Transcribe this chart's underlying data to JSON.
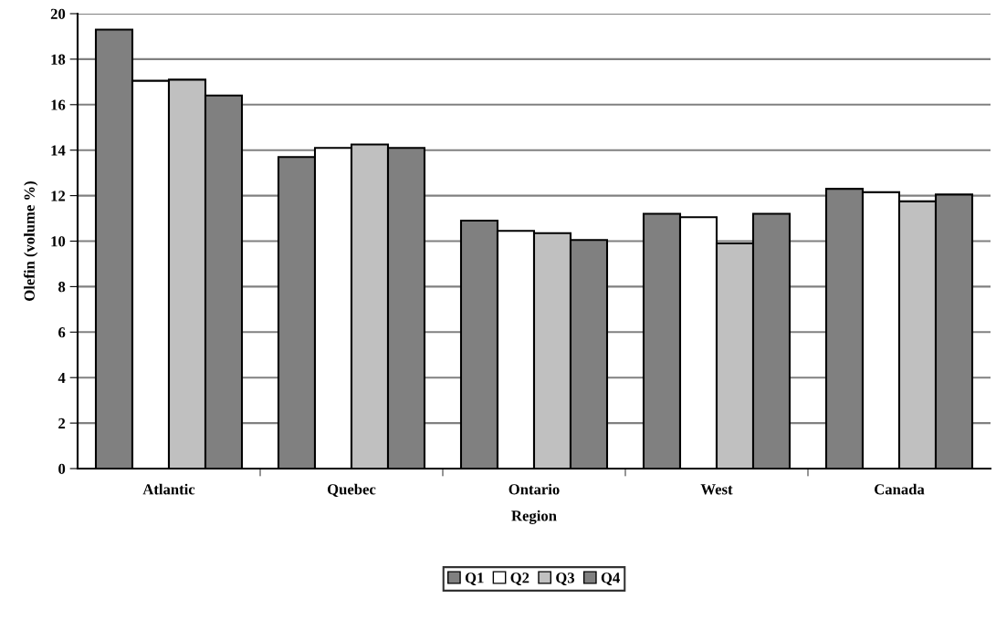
{
  "chart_data": {
    "type": "bar",
    "xlabel": "Region",
    "ylabel": "Olefin (volume %)",
    "categories": [
      "Atlantic",
      "Quebec",
      "Ontario",
      "West",
      "Canada"
    ],
    "series": [
      {
        "name": "Q1",
        "color": "#808080",
        "values": [
          19.3,
          13.7,
          10.9,
          11.2,
          12.3
        ]
      },
      {
        "name": "Q2",
        "color": "#ffffff",
        "values": [
          17.05,
          14.1,
          10.45,
          11.05,
          12.15
        ]
      },
      {
        "name": "Q3",
        "color": "#c0c0c0",
        "values": [
          17.1,
          14.25,
          10.35,
          9.9,
          11.75
        ]
      },
      {
        "name": "Q4",
        "color": "#808080",
        "values": [
          16.4,
          14.1,
          10.05,
          11.2,
          12.05
        ]
      }
    ],
    "ylim": [
      0,
      20
    ],
    "yticks": [
      0,
      2,
      4,
      6,
      8,
      10,
      12,
      14,
      16,
      18,
      20
    ],
    "grid": "y",
    "legend": "bottom"
  }
}
